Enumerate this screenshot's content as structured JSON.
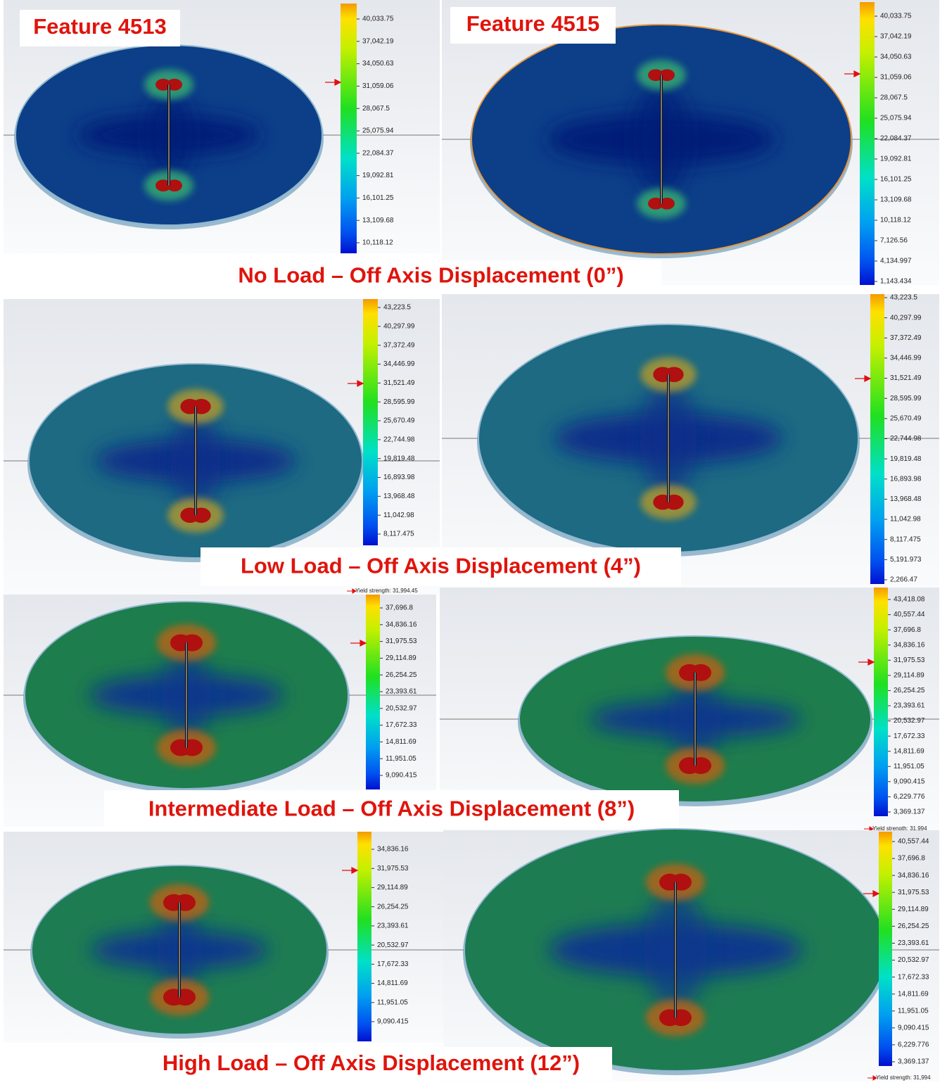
{
  "rows": [
    {
      "caption": "No Load – Off Axis Displacement (0”)",
      "panels": [
        {
          "label": "Feature 4513",
          "scale": [
            "40,033.75",
            "37,042.19",
            "34,050.63",
            "31,059.06",
            "28,067.5",
            "25,075.94",
            "22,084.37",
            "19,092.81",
            "16,101.25",
            "13,109.68",
            "10,118.12"
          ]
        },
        {
          "label": "Feature 4515",
          "scale": [
            "40,033.75",
            "37,042.19",
            "34,050.63",
            "31,059.06",
            "28,067.5",
            "25,075.94",
            "22,084.37",
            "19,092.81",
            "16,101.25",
            "13,109.68",
            "10,118.12",
            "7,126.56",
            "4,134.997",
            "1,143.434"
          ]
        }
      ]
    },
    {
      "caption": "Low Load – Off Axis Displacement (4”)",
      "panels": [
        {
          "scale": [
            "43,223.5",
            "40,297.99",
            "37,372.49",
            "34,446.99",
            "31,521.49",
            "28,595.99",
            "25,670.49",
            "22,744.98",
            "19,819.48",
            "16,893.98",
            "13,968.48",
            "11,042.98",
            "8,117.475"
          ],
          "yield": "Yield strength: 31,994.45"
        },
        {
          "scale": [
            "43,223.5",
            "40,297.99",
            "37,372.49",
            "34,446.99",
            "31,521.49",
            "28,595.99",
            "25,670.49",
            "22,744.98",
            "19,819.48",
            "16,893.98",
            "13,968.48",
            "11,042.98",
            "8,117.475",
            "5,191.973",
            "2,266.47"
          ]
        }
      ]
    },
    {
      "caption": "Intermediate Load – Off Axis Displacement (8”)",
      "panels": [
        {
          "scale": [
            "37,696.8",
            "34,836.16",
            "31,975.53",
            "29,114.89",
            "26,254.25",
            "23,393.61",
            "20,532.97",
            "17,672.33",
            "14,811.69",
            "11,951.05",
            "9,090.415"
          ]
        },
        {
          "scale": [
            "43,418.08",
            "40,557.44",
            "37,696.8",
            "34,836.16",
            "31,975.53",
            "29,114.89",
            "26,254.25",
            "23,393.61",
            "20,532.97",
            "17,672.33",
            "14,811.69",
            "11,951.05",
            "9,090.415",
            "6,229.776",
            "3,369.137"
          ],
          "yield": "Yield strength: 31,994"
        }
      ]
    },
    {
      "caption": "High Load – Off Axis Displacement (12”)",
      "panels": [
        {
          "scale": [
            "34,836.16",
            "31,975.53",
            "29,114.89",
            "26,254.25",
            "23,393.61",
            "20,532.97",
            "17,672.33",
            "14,811.69",
            "11,951.05",
            "9,090.415"
          ]
        },
        {
          "scale": [
            "40,557.44",
            "37,696.8",
            "34,836.16",
            "31,975.53",
            "29,114.89",
            "26,254.25",
            "23,393.61",
            "20,532.97",
            "17,672.33",
            "14,811.69",
            "11,951.05",
            "9,090.415",
            "6,229.776",
            "3,369.137"
          ],
          "yield": "Yield strength: 31,994"
        }
      ]
    }
  ]
}
